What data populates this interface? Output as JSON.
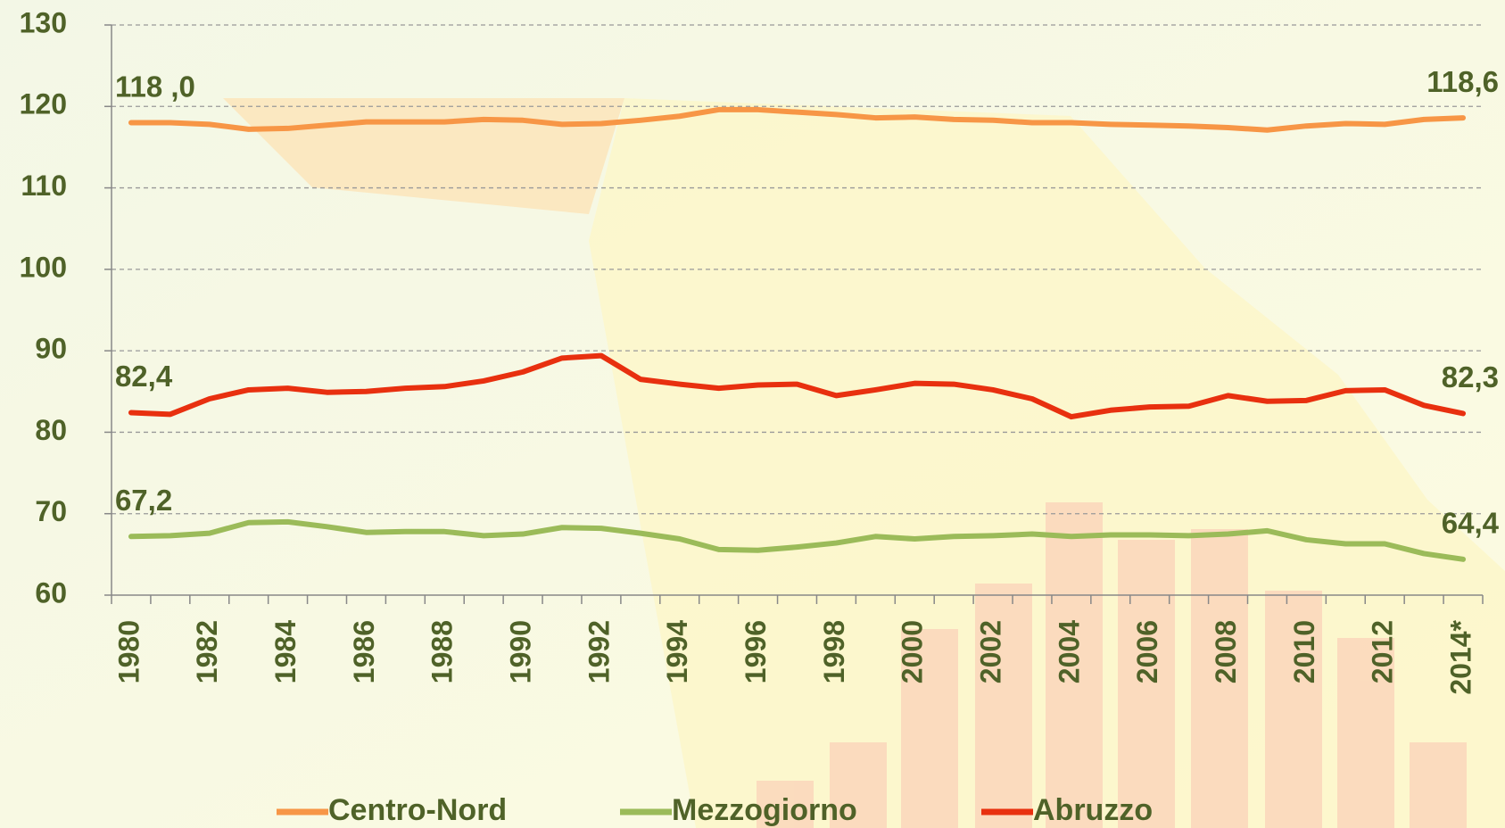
{
  "chart_data": {
    "type": "line",
    "categories": [
      "1980",
      null,
      "1982",
      null,
      "1984",
      null,
      "1986",
      null,
      "1988",
      null,
      "1990",
      null,
      "1992",
      null,
      "1994",
      null,
      "1996",
      null,
      "1998",
      null,
      "2000",
      null,
      "2002",
      null,
      "2004",
      null,
      "2006",
      null,
      "2008",
      null,
      "2010",
      null,
      "2012",
      null,
      "2014*"
    ],
    "series": [
      {
        "name": "Centro-Nord",
        "color": "#f79646",
        "values": [
          118.0,
          118.0,
          117.8,
          117.2,
          117.3,
          117.7,
          118.1,
          118.1,
          118.1,
          118.4,
          118.3,
          117.8,
          117.9,
          118.3,
          118.8,
          119.6,
          119.6,
          119.3,
          119.0,
          118.6,
          118.7,
          118.4,
          118.3,
          118.0,
          118.0,
          117.8,
          117.7,
          117.6,
          117.4,
          117.1,
          117.6,
          117.9,
          117.8,
          118.4,
          118.6
        ],
        "value_labels": [
          "118 ,0",
          null,
          null,
          null,
          null,
          null,
          null,
          null,
          null,
          null,
          null,
          null,
          null,
          null,
          null,
          null,
          null,
          null,
          null,
          null,
          null,
          null,
          null,
          null,
          null,
          null,
          null,
          null,
          null,
          null,
          null,
          null,
          null,
          null,
          "118,6"
        ]
      },
      {
        "name": "Mezzogiorno",
        "color": "#9bbb59",
        "values": [
          67.2,
          67.3,
          67.6,
          68.9,
          69.0,
          68.4,
          67.7,
          67.8,
          67.8,
          67.3,
          67.5,
          68.3,
          68.2,
          67.6,
          66.9,
          65.6,
          65.5,
          65.9,
          66.4,
          67.2,
          66.9,
          67.2,
          67.3,
          67.5,
          67.2,
          67.4,
          67.4,
          67.3,
          67.5,
          67.9,
          66.8,
          66.3,
          66.3,
          65.1,
          64.4
        ],
        "value_labels": [
          "67,2",
          null,
          null,
          null,
          null,
          null,
          null,
          null,
          null,
          null,
          null,
          null,
          null,
          null,
          null,
          null,
          null,
          null,
          null,
          null,
          null,
          null,
          null,
          null,
          null,
          null,
          null,
          null,
          null,
          null,
          null,
          null,
          null,
          null,
          "64,4"
        ]
      },
      {
        "name": "Abruzzo",
        "color": "#e8300f",
        "values": [
          82.4,
          82.2,
          84.1,
          85.2,
          85.4,
          84.9,
          85.0,
          85.4,
          85.6,
          86.3,
          87.4,
          89.1,
          89.4,
          86.5,
          85.9,
          85.4,
          85.8,
          85.9,
          84.5,
          85.2,
          86.0,
          85.9,
          85.2,
          84.1,
          81.9,
          82.7,
          83.1,
          83.2,
          84.5,
          83.8,
          83.9,
          85.1,
          85.2,
          83.3,
          82.3
        ],
        "value_labels": [
          "82,4",
          null,
          null,
          null,
          null,
          null,
          null,
          null,
          null,
          null,
          null,
          null,
          null,
          null,
          null,
          null,
          null,
          null,
          null,
          null,
          null,
          null,
          null,
          null,
          null,
          null,
          null,
          null,
          null,
          null,
          null,
          null,
          null,
          null,
          "82,3"
        ]
      }
    ],
    "ylim": [
      60,
      130
    ],
    "yticks": [
      60,
      70,
      80,
      90,
      100,
      110,
      120,
      130
    ],
    "grid": true
  }
}
